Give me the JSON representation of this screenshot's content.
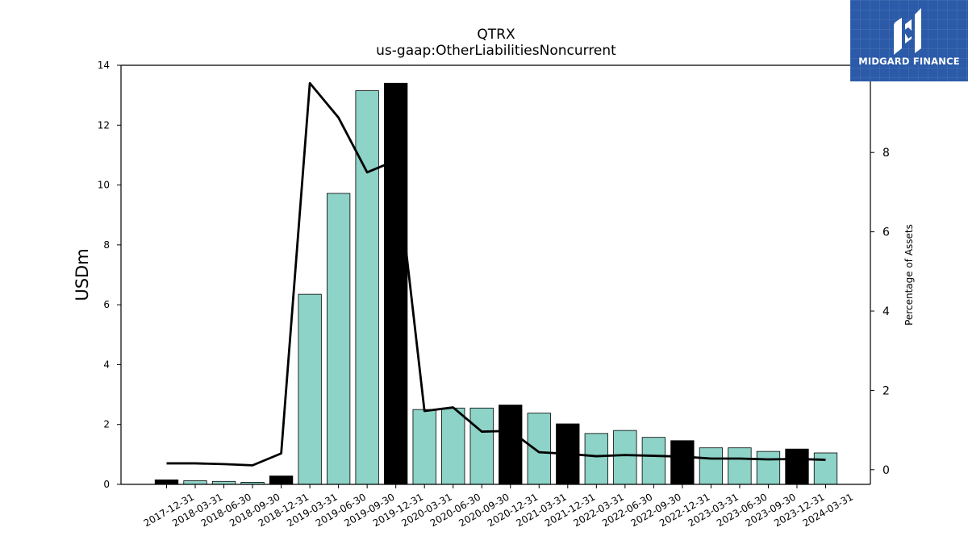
{
  "brand": {
    "name": "MIDGARD FINANCE",
    "logo_icon": "midgard-logo-icon",
    "color": "#2b5aa8"
  },
  "chart_data": {
    "type": "bar",
    "title": "QTRX",
    "subtitle": "us-gaap:OtherLiabilitiesNoncurrent",
    "ylabel": "USDm",
    "y2label": "Percentage of Assets",
    "ylim": [
      0,
      14
    ],
    "y2lim": [
      -0.37,
      10.2
    ],
    "yticks": [
      0,
      2,
      4,
      6,
      8,
      10,
      12,
      14
    ],
    "y2ticks": [
      0,
      2,
      4,
      6,
      8
    ],
    "categories": [
      "2017-12-31",
      "2018-03-31",
      "2018-06-30",
      "2018-09-30",
      "2018-12-31",
      "2019-03-31",
      "2019-06-30",
      "2019-09-30",
      "2019-12-31",
      "2020-03-31",
      "2020-06-30",
      "2020-09-30",
      "2020-12-31",
      "2021-03-31",
      "2021-12-31",
      "2022-03-31",
      "2022-06-30",
      "2022-09-30",
      "2022-12-31",
      "2023-03-31",
      "2023-06-30",
      "2023-09-30",
      "2023-12-31",
      "2024-03-31"
    ],
    "series": [
      {
        "type": "bar",
        "values": [
          0.15,
          0.12,
          0.1,
          0.07,
          0.28,
          6.35,
          9.72,
          13.15,
          13.4,
          2.5,
          2.55,
          2.55,
          2.65,
          2.38,
          2.02,
          1.7,
          1.8,
          1.57,
          1.46,
          1.22,
          1.22,
          1.1,
          1.18,
          1.05
        ]
      },
      {
        "type": "line",
        "axis": "right",
        "values": [
          0.16,
          0.16,
          0.14,
          0.11,
          0.41,
          9.75,
          8.88,
          7.5,
          7.8,
          1.48,
          1.57,
          0.96,
          0.98,
          0.44,
          0.4,
          0.34,
          0.37,
          0.35,
          0.33,
          0.28,
          0.28,
          0.26,
          0.27,
          0.25
        ]
      }
    ],
    "colors": {
      "bar": "#8dd3c7",
      "bar_highlight": "#000000",
      "line": "#000000"
    },
    "highlight_categories": [
      "2017-12-31",
      "2018-12-31",
      "2019-12-31",
      "2020-12-31",
      "2021-12-31",
      "2022-12-31",
      "2023-12-31"
    ],
    "grid": false,
    "legend": "none"
  }
}
